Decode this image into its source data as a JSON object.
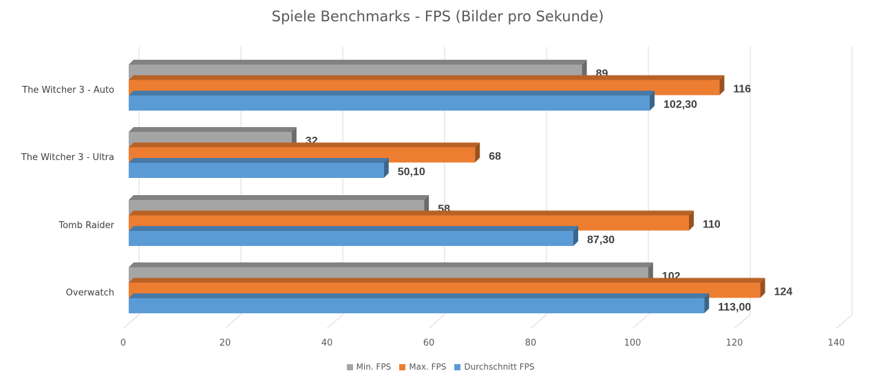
{
  "chart_data": {
    "type": "bar",
    "orientation": "horizontal",
    "title": "Spiele Benchmarks - FPS (Bilder pro Sekunde)",
    "categories": [
      "The Witcher 3 - Auto",
      "The Witcher 3 - Ultra",
      "Tomb Raider",
      "Overwatch"
    ],
    "series": [
      {
        "name": "Min. FPS",
        "color": "#a5a5a5",
        "values": [
          89,
          32,
          58,
          102
        ],
        "labels": [
          "89",
          "32",
          "58",
          "102"
        ]
      },
      {
        "name": "Max. FPS",
        "color": "#ed7d31",
        "values": [
          116,
          68,
          110,
          124
        ],
        "labels": [
          "116",
          "68",
          "110",
          "124"
        ]
      },
      {
        "name": "Durchschnitt FPS",
        "color": "#5b9bd5",
        "values": [
          102.3,
          50.1,
          87.3,
          113.0
        ],
        "labels": [
          "102,30",
          "50,10",
          "87,30",
          "113,00"
        ]
      }
    ],
    "xlim": [
      0,
      140
    ],
    "x_ticks": [
      "0",
      "20",
      "40",
      "60",
      "80",
      "100",
      "120",
      "140"
    ],
    "grid": true,
    "legend": "bottom",
    "style": "3d"
  }
}
